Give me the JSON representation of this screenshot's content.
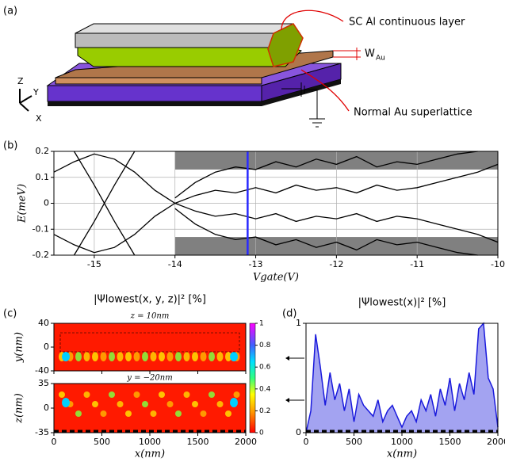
{
  "panel_a": {
    "label": "(a)",
    "sc_label": "SC Al continuous layer",
    "w_label": "W",
    "w_sub": "Au",
    "normal_label": "Normal Au superlattice",
    "axis_z": "Z",
    "axis_y": "Y",
    "axis_x": "X"
  },
  "chart_data": [
    {
      "type": "line",
      "panel_label": "(b)",
      "xlabel": "Vgate(V)",
      "ylabel": "E(meV)",
      "xlim": [
        -15.5,
        -10
      ],
      "ylim": [
        -0.2,
        0.2
      ],
      "xticks": [
        -15,
        -14,
        -13,
        -12,
        -11,
        -10
      ],
      "yticks": [
        -0.2,
        -0.1,
        0,
        0.1,
        0.2
      ],
      "grid": true,
      "shaded_x": [
        -14,
        -10
      ],
      "shaded_e": 0.13,
      "shade_color": "#808080",
      "marker_x": -13.1,
      "marker_color": "#2a2aff",
      "x": [
        -15.5,
        -15.25,
        -15,
        -14.75,
        -14.5,
        -14.25,
        -14,
        -13.75,
        -13.5,
        -13.25,
        -13,
        -12.75,
        -12.5,
        -12.25,
        -12,
        -11.75,
        -11.5,
        -11.25,
        -11,
        -10.75,
        -10.5,
        -10.25,
        -10
      ],
      "series": [
        {
          "color": "#000000",
          "values": [
            null,
            0.2,
            0.07,
            -0.07,
            -0.2,
            null,
            null,
            null,
            null,
            null,
            null,
            null,
            null,
            null,
            null,
            null,
            null,
            null,
            null,
            null,
            null,
            null,
            null
          ]
        },
        {
          "color": "#000000",
          "values": [
            null,
            -0.2,
            -0.07,
            0.07,
            0.2,
            null,
            null,
            null,
            null,
            null,
            null,
            null,
            null,
            null,
            null,
            null,
            null,
            null,
            null,
            null,
            null,
            null,
            null
          ]
        },
        {
          "color": "#000000",
          "values": [
            0.12,
            0.16,
            0.19,
            0.17,
            0.12,
            0.05,
            0,
            null,
            null,
            null,
            null,
            null,
            null,
            null,
            null,
            null,
            null,
            null,
            null,
            null,
            null,
            null,
            null
          ]
        },
        {
          "color": "#000000",
          "values": [
            -0.12,
            -0.16,
            -0.19,
            -0.17,
            -0.12,
            -0.05,
            0,
            null,
            null,
            null,
            null,
            null,
            null,
            null,
            null,
            null,
            null,
            null,
            null,
            null,
            null,
            null,
            null
          ]
        },
        {
          "color": "#000000",
          "values": [
            null,
            null,
            null,
            null,
            null,
            null,
            0,
            0.03,
            0.05,
            0.04,
            0.06,
            0.04,
            0.07,
            0.05,
            0.06,
            0.04,
            0.07,
            0.05,
            0.06,
            0.08,
            0.1,
            0.12,
            0.15
          ]
        },
        {
          "color": "#000000",
          "values": [
            null,
            null,
            null,
            null,
            null,
            null,
            0,
            -0.03,
            -0.05,
            -0.04,
            -0.06,
            -0.04,
            -0.07,
            -0.05,
            -0.06,
            -0.04,
            -0.07,
            -0.05,
            -0.06,
            -0.08,
            -0.1,
            -0.12,
            -0.15
          ]
        },
        {
          "color": "#000000",
          "values": [
            null,
            null,
            null,
            null,
            null,
            null,
            0.02,
            0.08,
            0.12,
            0.14,
            0.13,
            0.16,
            0.14,
            0.17,
            0.15,
            0.18,
            0.14,
            0.16,
            0.15,
            0.17,
            0.19,
            0.2,
            null
          ]
        },
        {
          "color": "#000000",
          "values": [
            null,
            null,
            null,
            null,
            null,
            null,
            -0.02,
            -0.08,
            -0.12,
            -0.14,
            -0.13,
            -0.16,
            -0.14,
            -0.17,
            -0.15,
            -0.18,
            -0.14,
            -0.16,
            -0.15,
            -0.17,
            -0.19,
            -0.2,
            null
          ]
        }
      ]
    },
    {
      "type": "heatmap",
      "panel_label": "(c)",
      "title": "|Ψlowest(x, y, z)|² [%]",
      "xlabel": "x(nm)",
      "xlim": [
        0,
        2000
      ],
      "xticks": [
        0,
        500,
        1000,
        1500,
        2000
      ],
      "panels": [
        {
          "subtitle": "z = 10nm",
          "ylabel": "y(nm)",
          "ylim": [
            -40,
            40
          ],
          "yticks": [
            -40,
            0,
            40
          ]
        },
        {
          "subtitle": "y = −20nm",
          "ylabel": "z(nm)",
          "ylim": [
            -35,
            35
          ],
          "yticks": [
            -35,
            0,
            35
          ]
        }
      ],
      "colorbar": {
        "lim": [
          0,
          1
        ],
        "ticks": [
          0,
          0.2,
          0.4,
          0.6,
          0.8,
          1
        ]
      }
    },
    {
      "type": "area",
      "panel_label": "(d)",
      "title": "|Ψlowest(x)|² [%]",
      "xlabel": "x(nm)",
      "xlim": [
        0,
        2000
      ],
      "ylim": [
        0,
        1
      ],
      "xticks": [
        0,
        500,
        1000,
        1500,
        2000
      ],
      "yticks": [
        0,
        1
      ],
      "color": "#1a1adc",
      "x": [
        0,
        50,
        100,
        150,
        200,
        250,
        300,
        350,
        400,
        450,
        500,
        550,
        600,
        650,
        700,
        750,
        800,
        850,
        900,
        950,
        1000,
        1050,
        1100,
        1150,
        1200,
        1250,
        1300,
        1350,
        1400,
        1450,
        1500,
        1550,
        1600,
        1650,
        1700,
        1750,
        1800,
        1850,
        1900,
        1950,
        2000
      ],
      "values": [
        0,
        0.2,
        0.9,
        0.6,
        0.25,
        0.55,
        0.3,
        0.45,
        0.2,
        0.4,
        0.1,
        0.35,
        0.25,
        0.2,
        0.15,
        0.3,
        0.1,
        0.2,
        0.25,
        0.15,
        0.05,
        0.15,
        0.2,
        0.1,
        0.3,
        0.2,
        0.35,
        0.15,
        0.4,
        0.25,
        0.5,
        0.2,
        0.45,
        0.3,
        0.55,
        0.35,
        0.95,
        1.0,
        0.5,
        0.4,
        0.05
      ]
    }
  ]
}
